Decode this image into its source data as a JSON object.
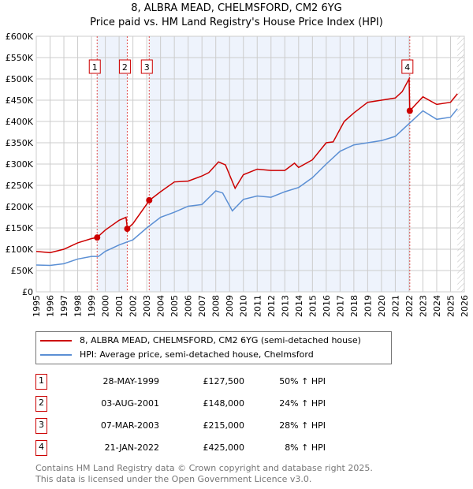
{
  "chart_data": {
    "type": "line",
    "title": "8, ALBRA MEAD, CHELMSFORD, CM2 6YG",
    "subtitle": "Price paid vs. HM Land Registry's House Price Index (HPI)",
    "xlim": [
      1995,
      2026
    ],
    "ylim": [
      0,
      600000
    ],
    "x_ticks": [
      "1995",
      "1996",
      "1997",
      "1998",
      "1999",
      "2000",
      "2001",
      "2002",
      "2003",
      "2004",
      "2005",
      "2006",
      "2007",
      "2008",
      "2009",
      "2010",
      "2011",
      "2012",
      "2013",
      "2014",
      "2015",
      "2016",
      "2017",
      "2018",
      "2019",
      "2020",
      "2021",
      "2022",
      "2023",
      "2024",
      "2025",
      "2026"
    ],
    "y_ticks": [
      {
        "v": 0,
        "l": "£0"
      },
      {
        "v": 50000,
        "l": "£50K"
      },
      {
        "v": 100000,
        "l": "£100K"
      },
      {
        "v": 150000,
        "l": "£150K"
      },
      {
        "v": 200000,
        "l": "£200K"
      },
      {
        "v": 250000,
        "l": "£250K"
      },
      {
        "v": 300000,
        "l": "£300K"
      },
      {
        "v": 350000,
        "l": "£350K"
      },
      {
        "v": 400000,
        "l": "£400K"
      },
      {
        "v": 450000,
        "l": "£450K"
      },
      {
        "v": 500000,
        "l": "£500K"
      },
      {
        "v": 550000,
        "l": "£550K"
      },
      {
        "v": 600000,
        "l": "£600K"
      }
    ],
    "grid": true,
    "series": [
      {
        "name": "8, ALBRA MEAD, CHELMSFORD, CM2 6YG (semi-detached house)",
        "color": "#cc0000",
        "x": [
          1995,
          1996,
          1997,
          1998,
          1999,
          1999.4,
          2000,
          2001,
          2001.5,
          2001.6,
          2002,
          2003.2,
          2004,
          2005,
          2006,
          2007,
          2007.5,
          2008.2,
          2008.7,
          2009.4,
          2010,
          2011,
          2012,
          2013,
          2013.7,
          2014,
          2015,
          2016,
          2016.5,
          2017.3,
          2018,
          2019,
          2020,
          2021,
          2021.5,
          2022,
          2022.05,
          2023,
          2024,
          2025,
          2025.5
        ],
        "y": [
          95000,
          92000,
          100000,
          115000,
          125000,
          127500,
          145000,
          168000,
          175000,
          148000,
          160000,
          215000,
          235000,
          258000,
          260000,
          272000,
          280000,
          305000,
          298000,
          243000,
          275000,
          288000,
          285000,
          285000,
          302000,
          292000,
          310000,
          350000,
          352000,
          400000,
          420000,
          445000,
          450000,
          455000,
          470000,
          500000,
          425000,
          458000,
          440000,
          445000,
          465000
        ]
      },
      {
        "name": "HPI: Average price, semi-detached house, Chelmsford",
        "color": "#5b8fd4",
        "x": [
          1995,
          1996,
          1997,
          1998,
          1999,
          1999.5,
          2000,
          2001,
          2002,
          2003,
          2004,
          2005,
          2006,
          2007,
          2008,
          2008.5,
          2009.2,
          2010,
          2011,
          2012,
          2013,
          2014,
          2015,
          2016,
          2017,
          2018,
          2019,
          2020,
          2021,
          2022,
          2023,
          2024,
          2025,
          2025.5
        ],
        "y": [
          63000,
          62000,
          66000,
          77000,
          83000,
          83000,
          95000,
          110000,
          122000,
          150000,
          175000,
          187000,
          201000,
          205000,
          237000,
          232000,
          190000,
          217000,
          225000,
          222000,
          235000,
          245000,
          268000,
          300000,
          330000,
          345000,
          350000,
          355000,
          365000,
          395000,
          425000,
          405000,
          410000,
          430000
        ]
      }
    ],
    "sales": [
      {
        "n": "1",
        "x": 1999.41,
        "y": 127500,
        "date": "28-MAY-1999",
        "price": "£127,500",
        "hpi": "50% ↑ HPI"
      },
      {
        "n": "2",
        "x": 2001.59,
        "y": 148000,
        "date": "03-AUG-2001",
        "price": "£148,000",
        "hpi": "24% ↑ HPI"
      },
      {
        "n": "3",
        "x": 2003.18,
        "y": 215000,
        "date": "07-MAR-2003",
        "price": "£215,000",
        "hpi": "28% ↑ HPI"
      },
      {
        "n": "4",
        "x": 2022.05,
        "y": 425000,
        "date": "21-JAN-2022",
        "price": "£425,000",
        "hpi": "8% ↑ HPI"
      }
    ],
    "colors": {
      "shade": "#eef3fc",
      "marker": "#cc0000"
    }
  },
  "footer": {
    "line1": "Contains HM Land Registry data © Crown copyright and database right 2025.",
    "line2": "This data is licensed under the Open Government Licence v3.0."
  }
}
